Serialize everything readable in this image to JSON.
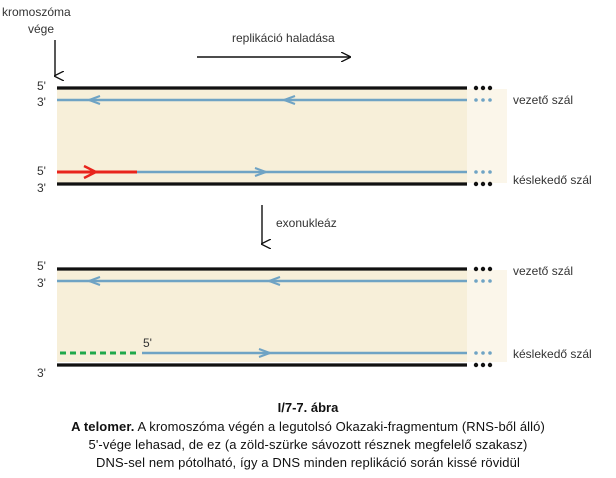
{
  "labels": {
    "chromosome_end_line1": "kromoszóma",
    "chromosome_end_line2": "vége",
    "replication_direction": "replikáció haladása",
    "exonuclease": "exonukleáz",
    "leading_strand_top": "vezető szál",
    "lagging_strand_top": "késlekedő szál",
    "leading_strand_bottom": "vezető szál",
    "lagging_strand_bottom": "késlekedő szál"
  },
  "strand_ends": {
    "five_prime": "5'",
    "three_prime": "3'"
  },
  "caption": {
    "figure_number": "I/7-7. ábra",
    "title": "A telomer.",
    "line1_rest": " A kromoszóma végén a legutolsó Okazaki-fragmentum (RNS-ből álló)",
    "line2": "5'-vége lehasad, de ez (a zöld-szürke sávozott résznek megfelelő szakasz)",
    "line3": "DNS-sel nem pótolható, így a DNS minden replikáció során kissé rövidül"
  },
  "colors": {
    "template_strand": "#111111",
    "new_strand": "#6fa3c4",
    "rna_primer": "#e8241c",
    "removed_primer_dashes": "#1fa84a",
    "band_fill": "#f7efd9"
  }
}
